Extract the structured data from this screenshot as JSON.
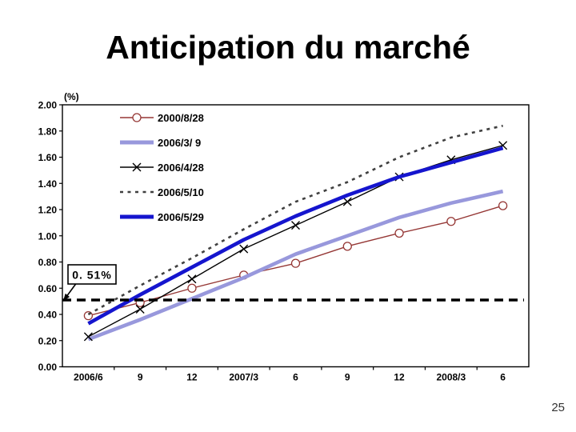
{
  "title": "Anticipation du marché",
  "page_number": "25",
  "chart_data": {
    "type": "line",
    "unit_label": "(%)",
    "categories": [
      "2006/6",
      "9",
      "12",
      "2007/3",
      "6",
      "9",
      "12",
      "2008/3",
      "6"
    ],
    "ylim": [
      0,
      2.0
    ],
    "ytick_step": 0.2,
    "ytick_labels": [
      "0.00",
      "0.20",
      "0.40",
      "0.60",
      "0.80",
      "1.00",
      "1.20",
      "1.40",
      "1.60",
      "1.80",
      "2.00"
    ],
    "grid": false,
    "legend_position": "inside-top-left",
    "series": [
      {
        "name": "2000/8/28",
        "color": "#953735",
        "style": "solid-thin",
        "marker": "circle",
        "values": [
          0.39,
          0.49,
          0.6,
          0.7,
          0.79,
          0.92,
          1.02,
          1.11,
          1.23
        ]
      },
      {
        "name": "2006/3/ 9",
        "color": "#9898DC",
        "style": "solid-thick",
        "marker": "none",
        "values": [
          0.21,
          0.36,
          0.52,
          0.68,
          0.86,
          1.0,
          1.14,
          1.25,
          1.34
        ]
      },
      {
        "name": "2006/4/28",
        "color": "#000000",
        "style": "solid-thin",
        "marker": "x",
        "values": [
          0.23,
          0.44,
          0.67,
          0.9,
          1.08,
          1.26,
          1.45,
          1.58,
          1.69
        ]
      },
      {
        "name": "2006/5/10",
        "color": "#404040",
        "style": "dashed",
        "marker": "none",
        "values": [
          0.4,
          0.62,
          0.83,
          1.05,
          1.26,
          1.41,
          1.6,
          1.75,
          1.84
        ]
      },
      {
        "name": "2006/5/29",
        "color": "#1515CE",
        "style": "solid-thick",
        "marker": "none",
        "values": [
          0.33,
          0.55,
          0.76,
          0.97,
          1.15,
          1.31,
          1.45,
          1.56,
          1.67
        ]
      }
    ],
    "reference_line": {
      "value": 0.51,
      "label": "0. 51%",
      "color": "#000000"
    }
  }
}
